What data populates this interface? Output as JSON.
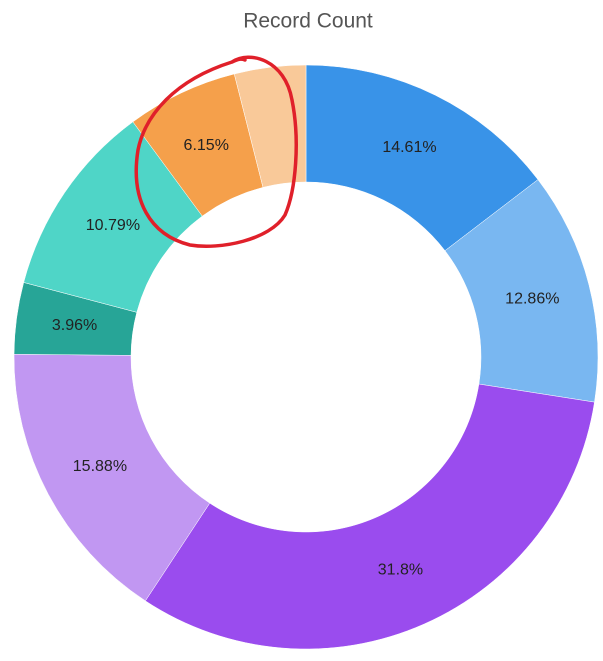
{
  "chart_data": {
    "type": "pie",
    "title": "Record Count",
    "values": [
      14.61,
      12.86,
      31.8,
      15.88,
      3.96,
      10.79,
      6.15,
      3.95
    ],
    "value_labels": [
      "14.61%",
      "12.86%",
      "31.8%",
      "15.88%",
      "3.96%",
      "10.79%",
      "6.15%",
      null
    ],
    "colors": [
      "#3993e8",
      "#79b7f1",
      "#9a4cee",
      "#c197f2",
      "#27a597",
      "#4fd5c7",
      "#f5a04b",
      "#f9c999"
    ]
  }
}
